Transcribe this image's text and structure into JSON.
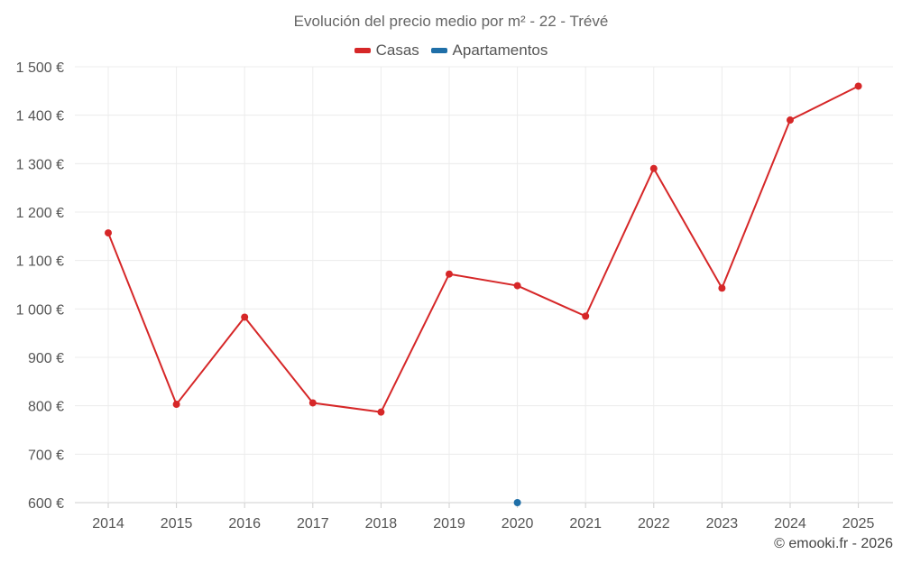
{
  "chart_data": {
    "type": "line",
    "title": "Evolución del precio medio por m² - 22 - Trévé",
    "xlabel": "",
    "ylabel": "",
    "categories": [
      "2014",
      "2015",
      "2016",
      "2017",
      "2018",
      "2019",
      "2020",
      "2021",
      "2022",
      "2023",
      "2024",
      "2025"
    ],
    "y_ticks": [
      "600 €",
      "700 €",
      "800 €",
      "900 €",
      "1 000 €",
      "1 100 €",
      "1 200 €",
      "1 300 €",
      "1 400 €",
      "1 500 €"
    ],
    "ylim": [
      600,
      1500
    ],
    "grid": true,
    "legend_position": "top-center",
    "series": [
      {
        "name": "Casas",
        "color": "#d62728",
        "values": [
          1157,
          803,
          983,
          806,
          787,
          1072,
          1048,
          985,
          1290,
          1043,
          1390,
          1460
        ]
      },
      {
        "name": "Apartamentos",
        "color": "#1f6fa8",
        "values": [
          null,
          null,
          null,
          null,
          null,
          null,
          600,
          null,
          null,
          null,
          null,
          null
        ]
      }
    ]
  },
  "footer": {
    "credit": "© emooki.fr - 2026"
  }
}
